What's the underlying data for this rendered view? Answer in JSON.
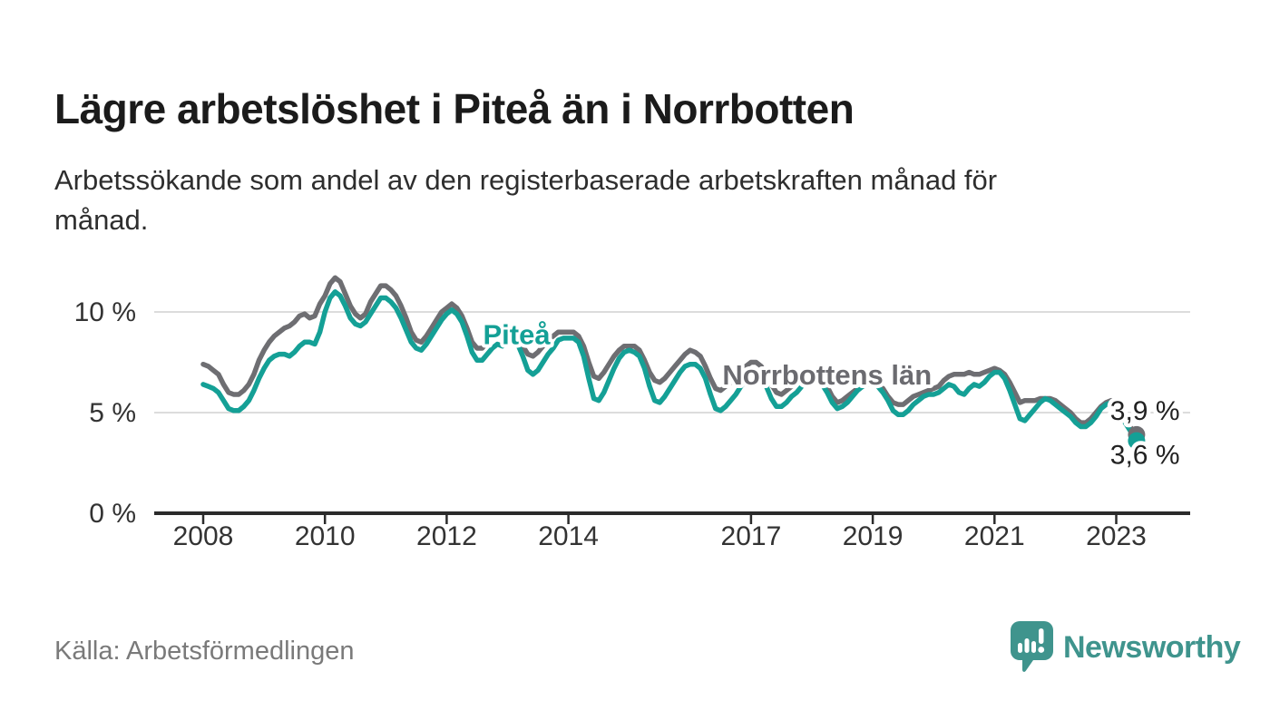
{
  "header": {
    "title": "Lägre arbetslöshet i Piteå än i Norrbotten",
    "subtitle": "Arbetssökande som andel av den registerbaserade arbetskraften månad för månad."
  },
  "footer": {
    "source": "Källa: Arbetsförmedlingen",
    "brand_name": "Newsworthy",
    "brand_color": "#3f948d",
    "brand_icon": "speech-bubble-bar-chart-icon"
  },
  "chart_data": {
    "type": "line",
    "frequency": "monthly",
    "x_start": {
      "year": 2008,
      "month": 1
    },
    "x_end": {
      "year": 2023,
      "month": 5
    },
    "unit": "%",
    "grid": "horizontal",
    "legend_position": "inline-labels",
    "ylim": [
      0,
      12.5
    ],
    "colors": {
      "grid": "#dcdcdc",
      "axis": "#2b2b2b",
      "tick_label": "#333333",
      "value_label": "#222222"
    },
    "y_ticks": [
      {
        "value": 0,
        "label": "0 %"
      },
      {
        "value": 5,
        "label": "5 %"
      },
      {
        "value": 10,
        "label": "10 %"
      }
    ],
    "x_tick_years": [
      2008,
      2010,
      2012,
      2014,
      2017,
      2019,
      2021,
      2023
    ],
    "series": [
      {
        "name": "Norrbottens län",
        "color": "#6e6e72",
        "label_color": "#6b6b70",
        "label_at": {
          "year": 2018.25,
          "value": 6.9
        },
        "end_label": "3,9 %",
        "end_label_at": {
          "year": 2022.9,
          "value": 5.1
        },
        "values": [
          7.4,
          7.3,
          7.1,
          6.9,
          6.4,
          6.0,
          5.9,
          5.9,
          6.1,
          6.4,
          6.9,
          7.6,
          8.1,
          8.5,
          8.8,
          9.0,
          9.2,
          9.3,
          9.5,
          9.8,
          9.9,
          9.7,
          9.8,
          10.4,
          10.8,
          11.4,
          11.7,
          11.5,
          10.9,
          10.3,
          9.9,
          9.7,
          9.9,
          10.5,
          10.9,
          11.3,
          11.3,
          11.1,
          10.8,
          10.3,
          9.7,
          9.0,
          8.6,
          8.5,
          8.8,
          9.2,
          9.6,
          10.0,
          10.2,
          10.4,
          10.2,
          9.8,
          9.2,
          8.5,
          8.2,
          8.2,
          8.5,
          8.7,
          8.9,
          8.8,
          8.8,
          8.9,
          8.7,
          8.3,
          7.9,
          7.8,
          8.0,
          8.3,
          8.6,
          8.8,
          9.0,
          9.0,
          9.0,
          9.0,
          8.8,
          8.3,
          7.5,
          6.8,
          6.7,
          7.0,
          7.4,
          7.8,
          8.1,
          8.3,
          8.3,
          8.3,
          8.1,
          7.6,
          7.0,
          6.6,
          6.5,
          6.7,
          7.0,
          7.3,
          7.6,
          7.9,
          8.1,
          8.0,
          7.8,
          7.3,
          6.7,
          6.2,
          6.1,
          6.3,
          6.5,
          6.8,
          7.1,
          7.3,
          7.5,
          7.5,
          7.3,
          6.9,
          6.4,
          6.0,
          5.9,
          6.1,
          6.3,
          6.5,
          6.7,
          6.8,
          6.9,
          6.8,
          6.7,
          6.3,
          5.8,
          5.5,
          5.6,
          5.8,
          6.0,
          6.2,
          6.4,
          6.5,
          6.5,
          6.4,
          6.2,
          5.8,
          5.5,
          5.4,
          5.4,
          5.6,
          5.8,
          5.9,
          6.0,
          6.1,
          6.2,
          6.3,
          6.6,
          6.8,
          6.9,
          6.9,
          6.9,
          7.0,
          6.9,
          6.9,
          7.0,
          7.1,
          7.2,
          7.1,
          6.9,
          6.5,
          6.0,
          5.5,
          5.6,
          5.6,
          5.6,
          5.7,
          5.7,
          5.7,
          5.6,
          5.4,
          5.2,
          5.0,
          4.7,
          4.5,
          4.5,
          4.7,
          5.0,
          5.3,
          5.5,
          5.6,
          5.4,
          5.0,
          4.6,
          4.2,
          3.9
        ]
      },
      {
        "name": "Piteå",
        "color": "#14a096",
        "label_color": "#14a096",
        "label_at": {
          "year": 2013.15,
          "value": 8.9
        },
        "end_label": "3,6 %",
        "end_label_at": {
          "year": 2022.9,
          "value": 2.9
        },
        "values": [
          6.4,
          6.3,
          6.2,
          6.0,
          5.6,
          5.2,
          5.1,
          5.1,
          5.3,
          5.6,
          6.1,
          6.7,
          7.2,
          7.6,
          7.8,
          7.9,
          7.9,
          7.8,
          8.0,
          8.3,
          8.5,
          8.5,
          8.4,
          9.0,
          10.0,
          10.7,
          11.0,
          10.8,
          10.3,
          9.7,
          9.4,
          9.3,
          9.5,
          9.9,
          10.3,
          10.7,
          10.7,
          10.5,
          10.2,
          9.7,
          9.1,
          8.5,
          8.2,
          8.1,
          8.4,
          8.8,
          9.2,
          9.6,
          9.9,
          10.1,
          9.9,
          9.5,
          8.8,
          8.0,
          7.6,
          7.6,
          7.9,
          8.2,
          8.4,
          8.3,
          8.6,
          8.7,
          8.4,
          7.8,
          7.1,
          6.9,
          7.1,
          7.5,
          7.9,
          8.2,
          8.6,
          8.7,
          8.7,
          8.7,
          8.5,
          7.8,
          6.7,
          5.7,
          5.6,
          6.0,
          6.6,
          7.2,
          7.7,
          8.0,
          8.1,
          8.0,
          7.8,
          7.2,
          6.3,
          5.6,
          5.5,
          5.8,
          6.2,
          6.6,
          7.0,
          7.3,
          7.4,
          7.4,
          7.2,
          6.7,
          5.9,
          5.2,
          5.1,
          5.3,
          5.6,
          5.9,
          6.3,
          6.6,
          6.9,
          7.0,
          6.8,
          6.3,
          5.7,
          5.3,
          5.3,
          5.5,
          5.8,
          6.0,
          6.3,
          6.5,
          6.6,
          6.6,
          6.4,
          6.0,
          5.5,
          5.2,
          5.3,
          5.5,
          5.8,
          6.1,
          6.3,
          6.4,
          6.4,
          6.3,
          6.0,
          5.6,
          5.1,
          4.9,
          4.9,
          5.1,
          5.4,
          5.6,
          5.8,
          5.9,
          5.9,
          6.0,
          6.2,
          6.4,
          6.3,
          6.0,
          5.9,
          6.2,
          6.4,
          6.3,
          6.5,
          6.8,
          7.0,
          7.0,
          6.7,
          6.1,
          5.4,
          4.7,
          4.6,
          4.9,
          5.2,
          5.5,
          5.7,
          5.6,
          5.4,
          5.2,
          5.0,
          4.8,
          4.5,
          4.3,
          4.3,
          4.5,
          4.8,
          5.2,
          5.4,
          5.5,
          5.2,
          4.8,
          4.4,
          4.0,
          3.6
        ]
      }
    ]
  }
}
